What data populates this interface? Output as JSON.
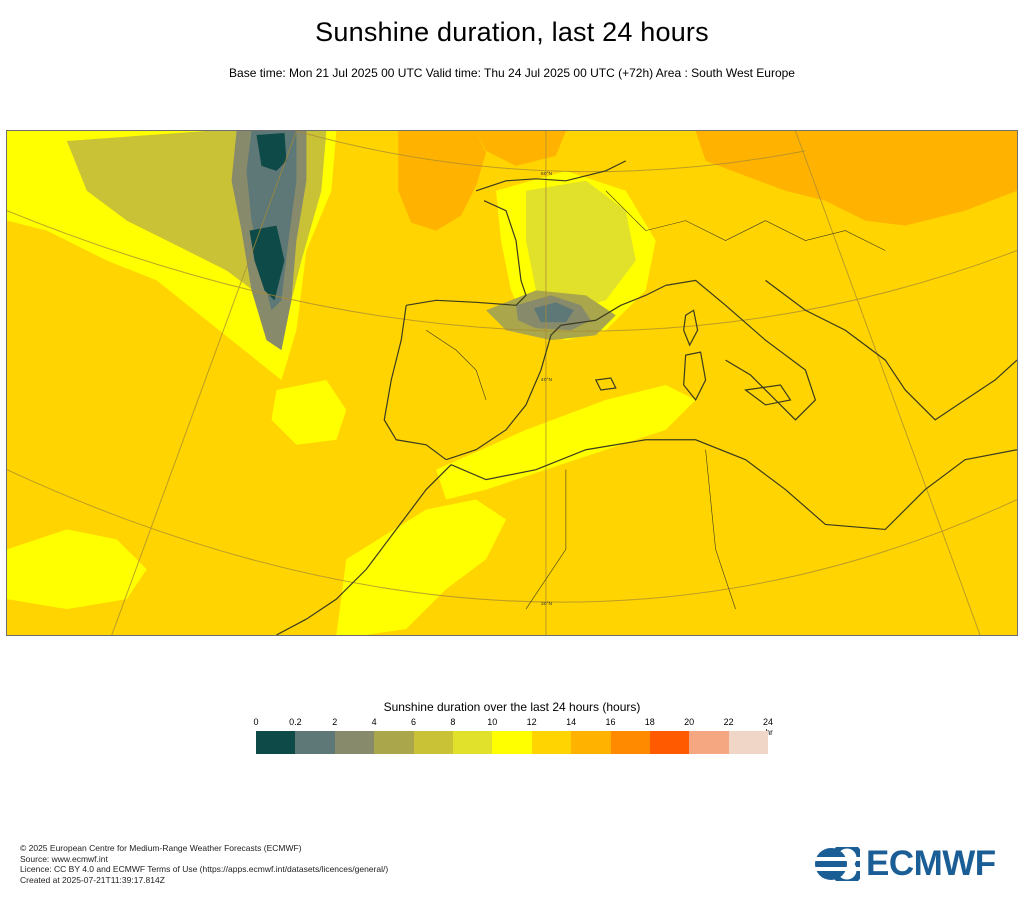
{
  "title": "Sunshine duration, last 24 hours",
  "subtitle": "Base time: Mon 21 Jul 2025 00 UTC Valid time: Thu 24 Jul 2025 00 UTC (+72h) Area : South West Europe",
  "map": {
    "graticule_labels": [
      "50°N",
      "40°N",
      "30°N"
    ]
  },
  "legend": {
    "title": "Sunshine duration over the last 24 hours (hours)",
    "ticks": [
      "0",
      "0.2",
      "2",
      "4",
      "6",
      "8",
      "10",
      "12",
      "14",
      "16",
      "18",
      "20",
      "22",
      "24"
    ],
    "unit": "-hr",
    "colors": [
      "#0e4a47",
      "#5d7876",
      "#888a6c",
      "#aaa64c",
      "#c9c237",
      "#e1e12c",
      "#ffff00",
      "#ffd400",
      "#ffb300",
      "#ff8a00",
      "#ff5a00",
      "#f4a781",
      "#f0d6c6"
    ]
  },
  "footer": {
    "lines": [
      "© 2025 European Centre for Medium-Range Weather Forecasts (ECMWF)",
      "Source: www.ecmwf.int",
      "Licence: CC BY 4.0 and ECMWF Terms of Use (https://apps.ecmwf.int/datasets/licences/general/)",
      "Created at 2025-07-21T11:39:17.814Z"
    ]
  },
  "logo": {
    "text": "ECMWF",
    "color": "#1b5e96"
  }
}
